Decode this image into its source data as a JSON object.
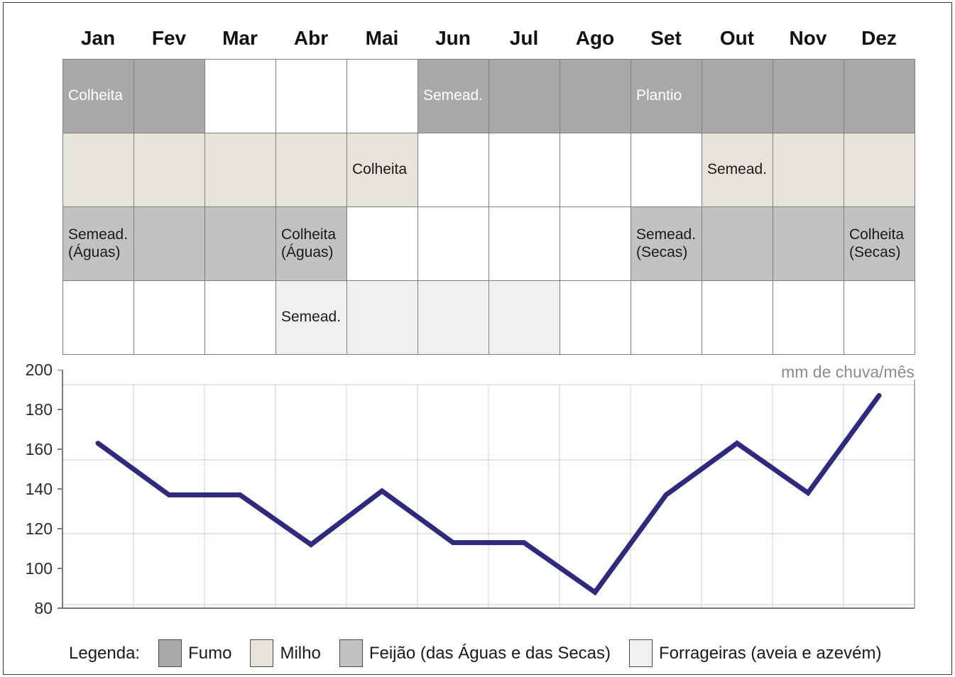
{
  "months": [
    "Jan",
    "Fev",
    "Mar",
    "Abr",
    "Mai",
    "Jun",
    "Jul",
    "Ago",
    "Set",
    "Out",
    "Nov",
    "Dez"
  ],
  "calendar": {
    "rows": [
      {
        "key": "fumo",
        "crop": "Fumo",
        "fill": "#a9a9a9",
        "text_color": "#ffffff",
        "cells": [
          "Colheita",
          "",
          null,
          null,
          null,
          "Semead.",
          "",
          "",
          "Plantio",
          "",
          "",
          ""
        ]
      },
      {
        "key": "milho",
        "crop": "Milho",
        "fill": "#e7e3d9",
        "text_color": "#1a1a1a",
        "cells": [
          "",
          "",
          "",
          "",
          "Colheita",
          null,
          null,
          null,
          null,
          "Semead.",
          "",
          ""
        ]
      },
      {
        "key": "feijao",
        "crop": "Feijão (das Águas e das Secas)",
        "fill": "#c2c2c2",
        "text_color": "#1a1a1a",
        "cells": [
          "Semead.\n(Águas)",
          "",
          "",
          "Colheita\n(Águas)",
          null,
          null,
          null,
          null,
          "Semead.\n(Secas)",
          "",
          "",
          "Colheita\n(Secas)"
        ]
      },
      {
        "key": "forrageiras",
        "crop": "Forrageiras (aveia e azevém)",
        "fill": "#eff0f2",
        "text_color": "#1a1a1a",
        "cells": [
          null,
          null,
          null,
          "Semead.",
          "",
          "",
          "",
          null,
          null,
          null,
          null,
          null
        ]
      }
    ]
  },
  "chart_data": {
    "type": "line",
    "title": "mm de chuva/mês",
    "categories": [
      "Jan",
      "Fev",
      "Mar",
      "Abr",
      "Mai",
      "Jun",
      "Jul",
      "Ago",
      "Set",
      "Out",
      "Nov",
      "Dez"
    ],
    "series": [
      {
        "name": "mm de chuva/mês",
        "values": [
          163,
          137,
          137,
          112,
          139,
          113,
          113,
          88,
          137,
          163,
          138,
          187
        ]
      }
    ],
    "xlabel": "",
    "ylabel": "mm de chuva/mês",
    "ylim": [
      80,
      200
    ],
    "yticks": [
      200,
      180,
      160,
      140,
      120,
      100,
      80
    ],
    "grid": true,
    "legend_position": "none",
    "line_color": "#2f2a7d"
  },
  "legend": {
    "label": "Legenda:",
    "items": [
      {
        "key": "fumo",
        "name": "Fumo",
        "color": "#a9a9a9"
      },
      {
        "key": "milho",
        "name": "Milho",
        "color": "#e7e3d9"
      },
      {
        "key": "feijao",
        "name": "Feijão (das Águas e das Secas)",
        "color": "#c2c2c2"
      },
      {
        "key": "forrageiras",
        "name": "Forrageiras (aveia e azevém)",
        "color": "#eff0f2"
      }
    ]
  }
}
